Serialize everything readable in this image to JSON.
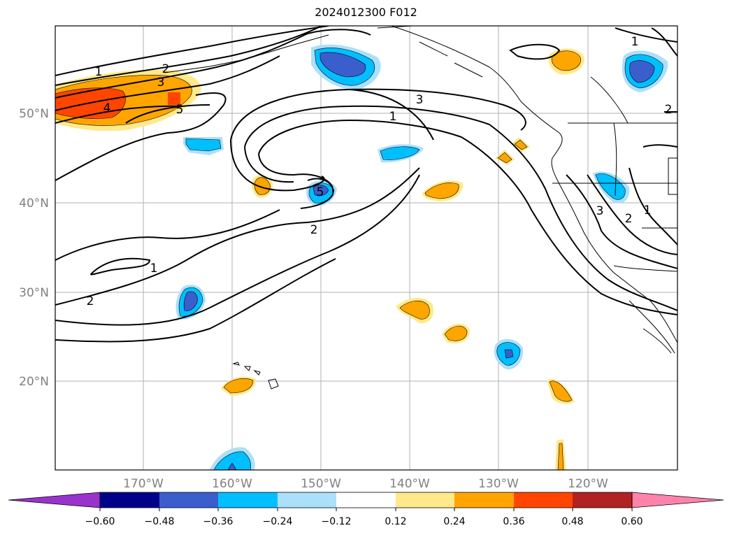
{
  "title": "2024012300 F012",
  "map": {
    "lat_ticks": [
      "50°N",
      "40°N",
      "30°N",
      "20°N"
    ],
    "lon_ticks": [
      "170°W",
      "160°W",
      "150°W",
      "140°W",
      "130°W",
      "120°W"
    ],
    "grid": true
  },
  "colorbar": {
    "tick_labels": [
      "−0.60",
      "−0.48",
      "−0.36",
      "−0.24",
      "−0.12",
      "0.12",
      "0.24",
      "0.36",
      "0.48",
      "0.60"
    ],
    "colors": [
      "#9933cc",
      "#00008b",
      "#3a5fcd",
      "#00bfff",
      "#abe0fa",
      "#ffffff",
      "#ffe98a",
      "#ffa500",
      "#ff4500",
      "#b22222",
      "#ff82ab"
    ]
  },
  "contour_labels": [
    {
      "text": "1"
    },
    {
      "text": "2"
    },
    {
      "text": "3"
    },
    {
      "text": "4"
    },
    {
      "text": "5"
    },
    {
      "text": "3"
    },
    {
      "text": "1"
    },
    {
      "text": "5"
    },
    {
      "text": "2"
    },
    {
      "text": "2"
    },
    {
      "text": "1"
    },
    {
      "text": "1"
    },
    {
      "text": "2"
    },
    {
      "text": "3"
    },
    {
      "text": "2"
    },
    {
      "text": "1"
    }
  ]
}
